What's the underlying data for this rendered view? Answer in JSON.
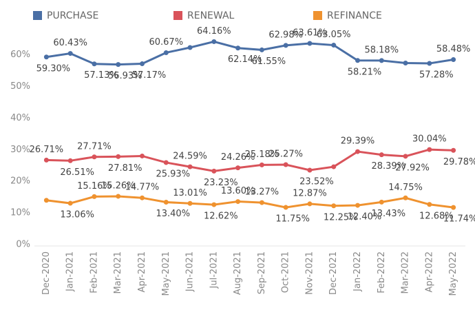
{
  "chart_data": {
    "type": "line",
    "categories": [
      "Dec-2020",
      "Jan-2021",
      "Feb-2021",
      "Mar-2021",
      "Apr-2021",
      "May-2021",
      "Jun-2021",
      "Jul-2021",
      "Aug-2021",
      "Sep-2021",
      "Oct-2021",
      "Nov-2021",
      "Dec-2021",
      "Jan-2022",
      "Feb-2022",
      "Mar-2022",
      "Apr-2022",
      "May-2022"
    ],
    "series": [
      {
        "name": "PURCHASE",
        "color": "#4a6fa5",
        "values": [
          59.3,
          60.43,
          57.13,
          56.93,
          57.17,
          60.67,
          62.3,
          64.16,
          62.14,
          61.55,
          62.98,
          63.61,
          63.05,
          58.21,
          58.18,
          57.4,
          57.28,
          58.48
        ],
        "value_labels": [
          "59.30%",
          "60.43%",
          "57.13%",
          "56.93%",
          "57.17%",
          "60.67%",
          null,
          "64.16%",
          "62.14%",
          "61.55%",
          "62.98%",
          "63.61%",
          "63.05%",
          "58.21%",
          "58.18%",
          null,
          "57.28%",
          "58.48%"
        ]
      },
      {
        "name": "RENEWAL",
        "color": "#d9535a",
        "values": [
          26.71,
          26.51,
          27.71,
          27.81,
          28.0,
          25.93,
          24.59,
          23.23,
          24.26,
          25.18,
          25.27,
          23.52,
          24.6,
          29.39,
          28.39,
          27.92,
          30.04,
          29.78
        ],
        "value_labels": [
          "26.71%",
          "26.51%",
          "27.71%",
          "27.81%",
          null,
          "25.93%",
          "24.59%",
          "23.23%",
          "24.26%",
          "25.18%",
          "25.27%",
          "23.52%",
          null,
          "29.39%",
          "28.39%",
          "27.92%",
          "30.04%",
          "29.78%"
        ]
      },
      {
        "name": "REFINANCE",
        "color": "#ef922f",
        "values": [
          14.0,
          13.06,
          15.16,
          15.26,
          14.77,
          13.4,
          13.01,
          12.62,
          13.6,
          13.27,
          11.75,
          12.87,
          12.25,
          12.4,
          13.43,
          14.75,
          12.68,
          11.74
        ],
        "value_labels": [
          null,
          "13.06%",
          "15.16%",
          "15.26%",
          "14.77%",
          "13.40%",
          "13.01%",
          "12.62%",
          "13.60%",
          "13.27%",
          "11.75%",
          "12.87%",
          "12.25%",
          "12.40%",
          "13.43%",
          "14.75%",
          "12.68%",
          "11.74%"
        ]
      }
    ],
    "ylim": [
      0,
      66
    ],
    "yticks": [
      {
        "value": 0,
        "label": "0%"
      },
      {
        "value": 10,
        "label": "10%"
      },
      {
        "value": 20,
        "label": "20%"
      },
      {
        "value": 30,
        "label": "30%"
      },
      {
        "value": 40,
        "label": "40%"
      },
      {
        "value": 50,
        "label": "50%"
      },
      {
        "value": 60,
        "label": "60%"
      }
    ],
    "grid": false,
    "legend": "top"
  }
}
